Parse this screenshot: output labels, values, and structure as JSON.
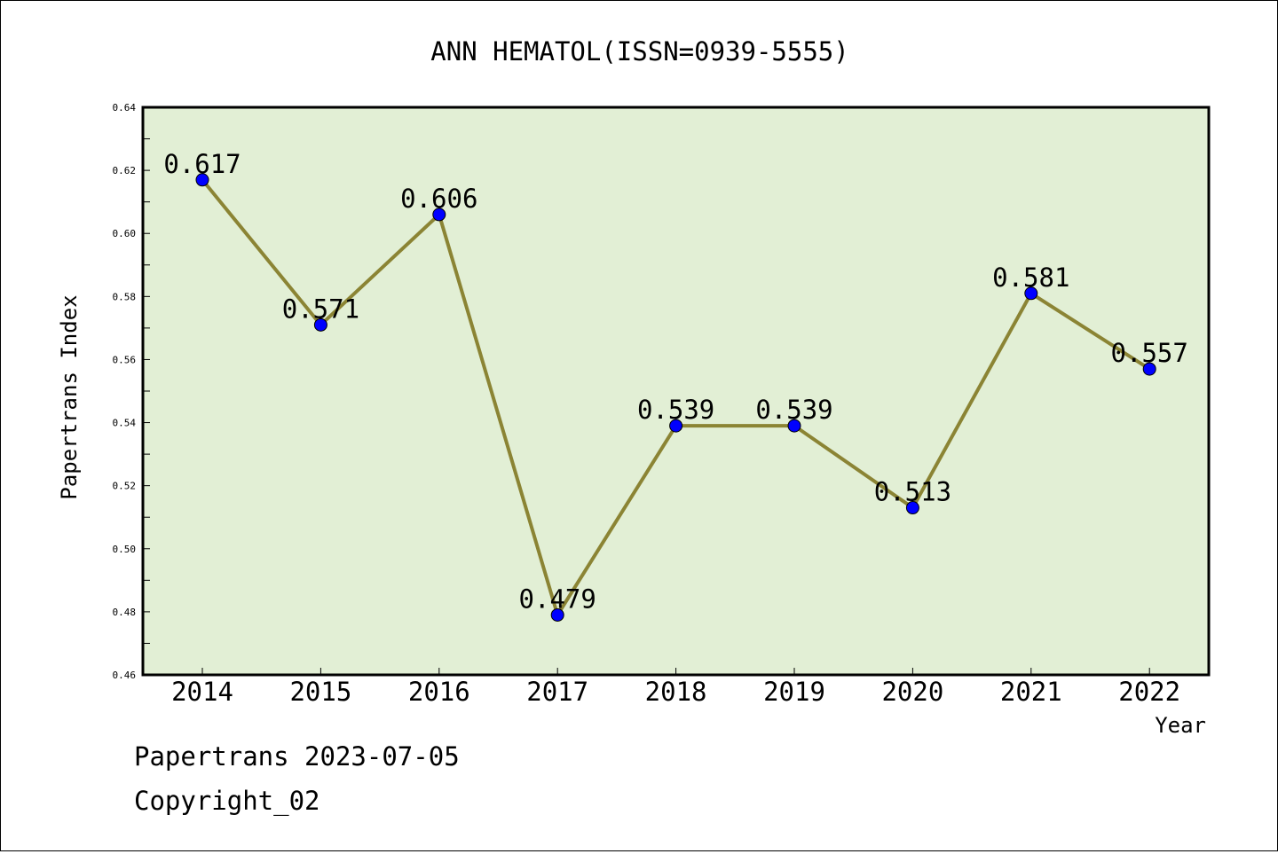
{
  "chart_data": {
    "type": "line",
    "title": "ANN HEMATOL(ISSN=0939-5555)",
    "xlabel": "Year",
    "ylabel": "Papertrans Index",
    "x": [
      "2014",
      "2015",
      "2016",
      "2017",
      "2018",
      "2019",
      "2020",
      "2021",
      "2022"
    ],
    "series": [
      {
        "values": [
          0.617,
          0.571,
          0.606,
          0.479,
          0.539,
          0.539,
          0.513,
          0.581,
          0.557
        ],
        "data_labels": [
          "0.617",
          "0.571",
          "0.606",
          "0.479",
          "0.539",
          "0.539",
          "0.513",
          "0.581",
          "0.557"
        ]
      }
    ],
    "ylim": [
      0.46,
      0.64
    ],
    "yticks": [
      "0.46",
      "0.48",
      "0.50",
      "0.52",
      "0.54",
      "0.56",
      "0.58",
      "0.60",
      "0.62",
      "0.64"
    ],
    "grid": false,
    "legend": "none",
    "colors": {
      "plot_background": "#e2efd5",
      "line": "#8b8434",
      "marker": "#0000ff"
    }
  },
  "footer": {
    "source": "Papertrans 2023-07-05",
    "copyright": "Copyright_02"
  }
}
